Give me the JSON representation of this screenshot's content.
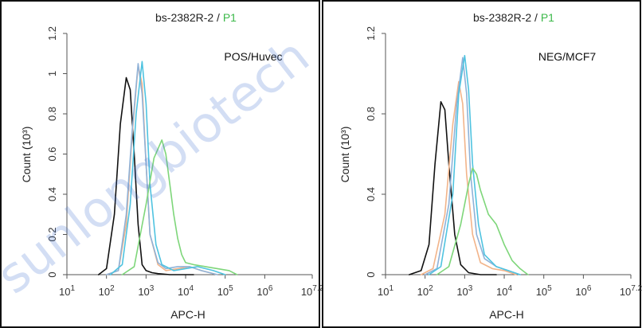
{
  "watermark": "sunlongbiotech",
  "chart_data": [
    {
      "type": "line",
      "title": {
        "main": "bs-2382R-2",
        "sep": " / ",
        "accent": "P1"
      },
      "annotation": "POS/Huvec",
      "xlabel": "APC-H",
      "ylabel": "Count (10³)",
      "xscale": "log",
      "xlim": [
        1,
        7.2
      ],
      "ylim": [
        0,
        1.2
      ],
      "xticks": [
        {
          "v": 1,
          "t": "1"
        },
        {
          "v": 2,
          "t": "2"
        },
        {
          "v": 3,
          "t": "3"
        },
        {
          "v": 4,
          "t": "4"
        },
        {
          "v": 5,
          "t": "5"
        },
        {
          "v": 6,
          "t": "6"
        },
        {
          "v": 7.2,
          "t": "7.2"
        }
      ],
      "yticks": [
        {
          "v": 0,
          "t": "0"
        },
        {
          "v": 0.2,
          "t": "0.2"
        },
        {
          "v": 0.4,
          "t": "0.4"
        },
        {
          "v": 0.6,
          "t": "0.6"
        },
        {
          "v": 0.8,
          "t": "0.8"
        },
        {
          "v": 1,
          "t": "1"
        },
        {
          "v": 1.2,
          "t": "1.2"
        }
      ],
      "series": [
        {
          "color": "#111111",
          "x": [
            1.8,
            2.0,
            2.2,
            2.35,
            2.5,
            2.6,
            2.7,
            2.8,
            2.9,
            3.0,
            3.15,
            3.3,
            3.6,
            4.2
          ],
          "y": [
            0,
            0.03,
            0.3,
            0.75,
            0.98,
            0.92,
            0.6,
            0.25,
            0.05,
            0.02,
            0.01,
            0.005,
            0,
            0
          ]
        },
        {
          "color": "#f2b48a",
          "x": [
            2.0,
            2.3,
            2.5,
            2.65,
            2.8,
            2.9,
            3.0,
            3.1,
            3.3,
            3.5,
            3.8,
            4.1,
            4.4,
            4.8
          ],
          "y": [
            0,
            0.02,
            0.25,
            0.7,
            1.04,
            0.95,
            0.55,
            0.2,
            0.05,
            0.02,
            0.03,
            0.04,
            0.02,
            0
          ]
        },
        {
          "color": "#8fb2d8",
          "x": [
            2.0,
            2.3,
            2.5,
            2.65,
            2.8,
            2.9,
            3.0,
            3.1,
            3.3,
            3.5,
            3.8,
            4.1,
            4.4,
            4.8
          ],
          "y": [
            0,
            0.02,
            0.3,
            0.72,
            1.05,
            0.9,
            0.55,
            0.2,
            0.06,
            0.03,
            0.04,
            0.04,
            0.02,
            0
          ]
        },
        {
          "color": "#4fc3e0",
          "x": [
            2.1,
            2.4,
            2.6,
            2.75,
            2.9,
            3.0,
            3.1,
            3.25,
            3.4,
            3.7,
            4.0,
            4.3,
            4.7,
            5.0
          ],
          "y": [
            0,
            0.05,
            0.35,
            0.8,
            1.06,
            0.85,
            0.45,
            0.15,
            0.05,
            0.02,
            0.03,
            0.04,
            0.02,
            0
          ]
        },
        {
          "color": "#7ed67a",
          "x": [
            2.4,
            2.7,
            3.0,
            3.2,
            3.4,
            3.5,
            3.6,
            3.7,
            3.8,
            3.9,
            4.0,
            4.2,
            4.5,
            4.8,
            5.1,
            5.3
          ],
          "y": [
            0,
            0.04,
            0.35,
            0.58,
            0.67,
            0.6,
            0.45,
            0.3,
            0.18,
            0.1,
            0.06,
            0.05,
            0.04,
            0.03,
            0.02,
            0
          ]
        }
      ]
    },
    {
      "type": "line",
      "title": {
        "main": "bs-2382R-2",
        "sep": " / ",
        "accent": "P1"
      },
      "annotation": "NEG/MCF7",
      "xlabel": "APC-H",
      "ylabel": "Count (10³)",
      "xscale": "log",
      "xlim": [
        1,
        7.2
      ],
      "ylim": [
        0,
        1.2
      ],
      "xticks": [
        {
          "v": 1,
          "t": "1"
        },
        {
          "v": 2,
          "t": "2"
        },
        {
          "v": 3,
          "t": "3"
        },
        {
          "v": 4,
          "t": "4"
        },
        {
          "v": 5,
          "t": "5"
        },
        {
          "v": 6,
          "t": "6"
        },
        {
          "v": 7.2,
          "t": "7.2"
        }
      ],
      "yticks": [
        {
          "v": 0,
          "t": "0"
        },
        {
          "v": 0.4,
          "t": "0.4"
        },
        {
          "v": 0.8,
          "t": "0.8"
        },
        {
          "v": 1.2,
          "t": "1.2"
        }
      ],
      "series": [
        {
          "color": "#111111",
          "x": [
            1.6,
            1.9,
            2.1,
            2.25,
            2.4,
            2.5,
            2.6,
            2.75,
            2.9,
            3.1,
            3.4,
            3.8
          ],
          "y": [
            0,
            0.02,
            0.15,
            0.55,
            0.86,
            0.82,
            0.55,
            0.2,
            0.05,
            0.01,
            0,
            0
          ]
        },
        {
          "color": "#f2b48a",
          "x": [
            1.9,
            2.2,
            2.5,
            2.7,
            2.85,
            2.95,
            3.05,
            3.2,
            3.4,
            3.7,
            4.0,
            4.3
          ],
          "y": [
            0,
            0.03,
            0.3,
            0.75,
            0.96,
            0.85,
            0.5,
            0.2,
            0.06,
            0.03,
            0.02,
            0
          ]
        },
        {
          "color": "#8fb2d8",
          "x": [
            2.0,
            2.3,
            2.6,
            2.8,
            2.95,
            3.05,
            3.15,
            3.3,
            3.5,
            3.8,
            4.1,
            4.4
          ],
          "y": [
            0,
            0.03,
            0.35,
            0.85,
            1.08,
            0.9,
            0.5,
            0.2,
            0.08,
            0.04,
            0.02,
            0
          ]
        },
        {
          "color": "#4fc3e0",
          "x": [
            2.1,
            2.4,
            2.7,
            2.85,
            3.0,
            3.1,
            3.2,
            3.35,
            3.5,
            3.8,
            4.1,
            4.4
          ],
          "y": [
            0,
            0.04,
            0.4,
            0.9,
            1.09,
            0.92,
            0.55,
            0.25,
            0.1,
            0.04,
            0.02,
            0
          ]
        },
        {
          "color": "#7ed67a",
          "x": [
            2.3,
            2.6,
            2.9,
            3.1,
            3.2,
            3.3,
            3.4,
            3.6,
            3.8,
            4.0,
            4.2,
            4.4,
            4.6
          ],
          "y": [
            0,
            0.04,
            0.25,
            0.45,
            0.53,
            0.5,
            0.42,
            0.3,
            0.25,
            0.15,
            0.07,
            0.03,
            0
          ]
        }
      ]
    }
  ]
}
